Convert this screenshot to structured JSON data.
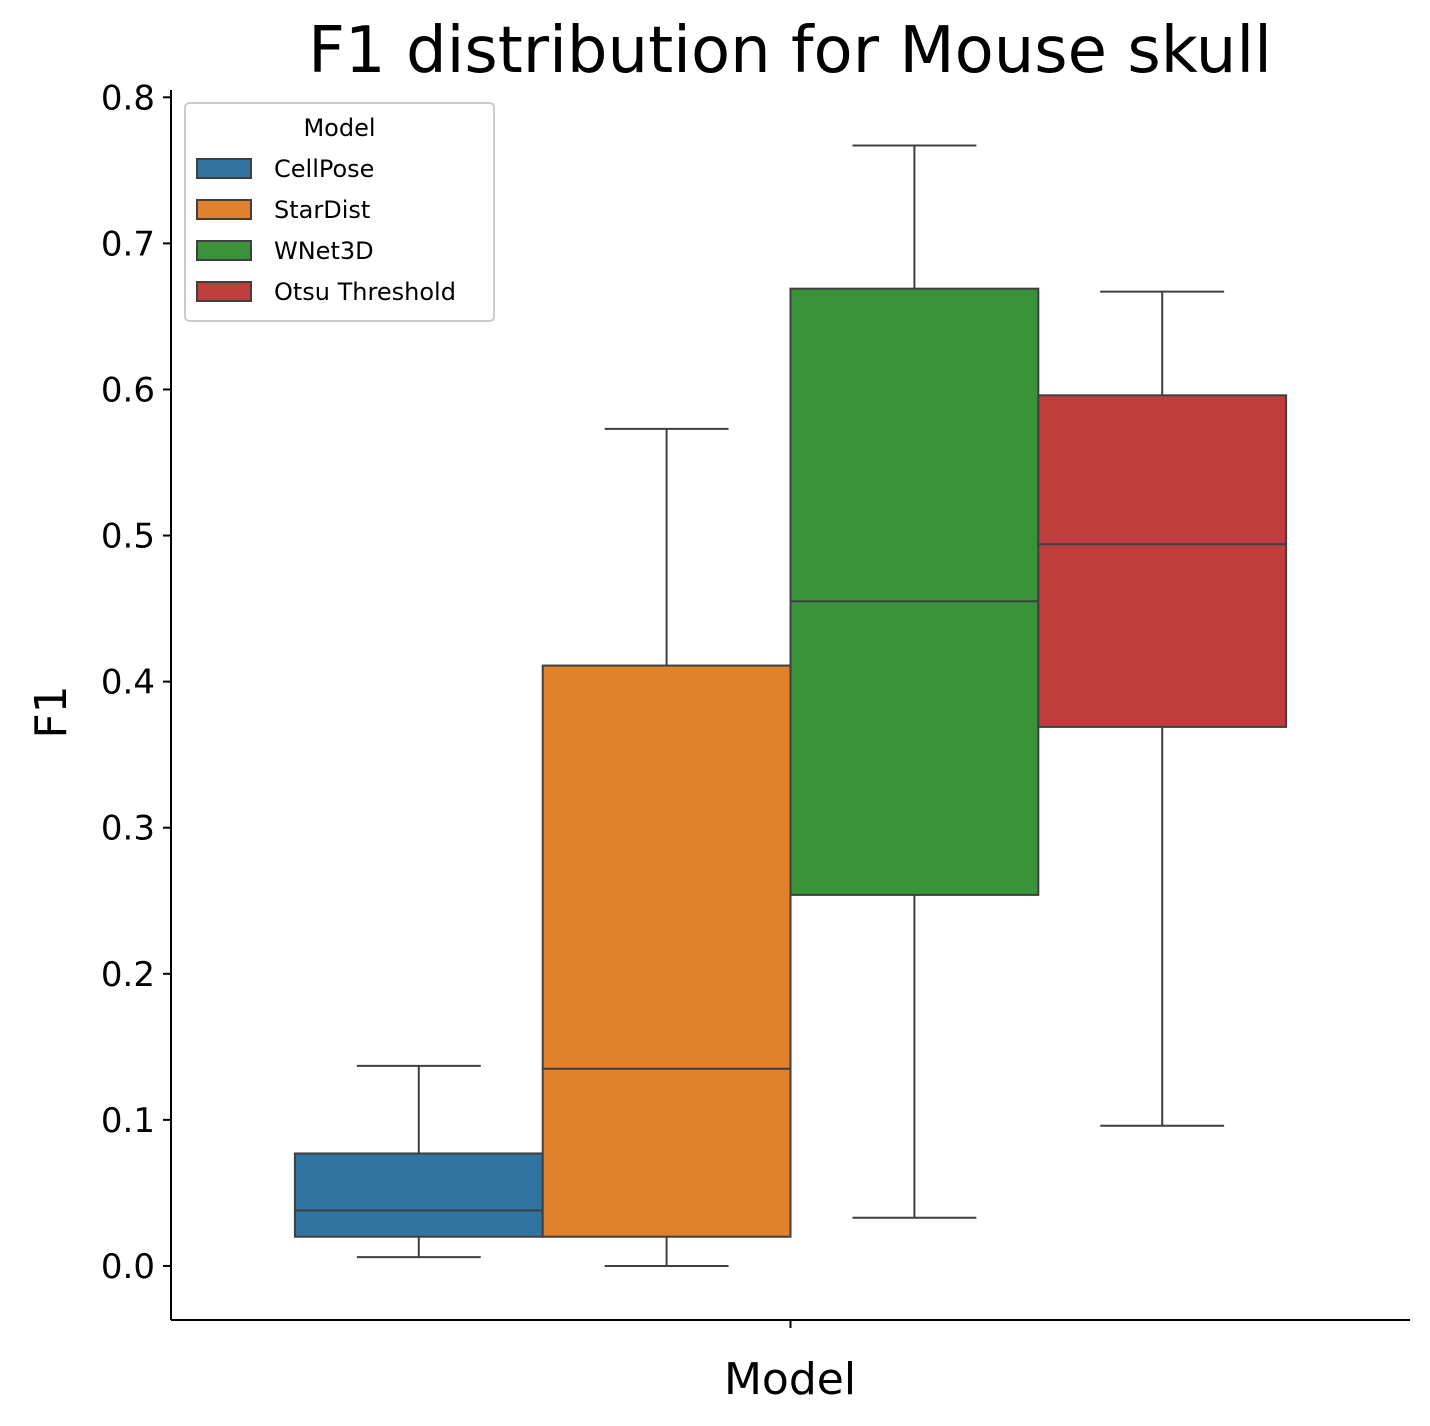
{
  "chart_data": {
    "type": "box",
    "title": "F1 distribution for Mouse skull",
    "xlabel": "Model",
    "ylabel": "F1",
    "ylim": [
      -0.037,
      0.805
    ],
    "yticks": [
      "0.0",
      "0.1",
      "0.2",
      "0.3",
      "0.4",
      "0.5",
      "0.6",
      "0.7",
      "0.8"
    ],
    "ytick_values": [
      0.0,
      0.1,
      0.2,
      0.3,
      0.4,
      0.5,
      0.6,
      0.7,
      0.8
    ],
    "grid": false,
    "legend": {
      "title": "Model",
      "placement": "top-left",
      "entries": [
        "CellPose",
        "StarDist",
        "WNet3D",
        "Otsu Threshold"
      ]
    },
    "series": [
      {
        "name": "CellPose",
        "color": "#3274a1",
        "whisker_low": 0.006,
        "q1": 0.02,
        "median": 0.038,
        "q3": 0.077,
        "whisker_high": 0.137
      },
      {
        "name": "StarDist",
        "color": "#e1812c",
        "whisker_low": 0.0,
        "q1": 0.02,
        "median": 0.135,
        "q3": 0.411,
        "whisker_high": 0.573
      },
      {
        "name": "WNet3D",
        "color": "#3a923a",
        "whisker_low": 0.033,
        "q1": 0.254,
        "median": 0.455,
        "q3": 0.669,
        "whisker_high": 0.767
      },
      {
        "name": "Otsu Threshold",
        "color": "#c03d3e",
        "whisker_low": 0.096,
        "q1": 0.369,
        "median": 0.494,
        "q3": 0.596,
        "whisker_high": 0.667
      }
    ]
  }
}
